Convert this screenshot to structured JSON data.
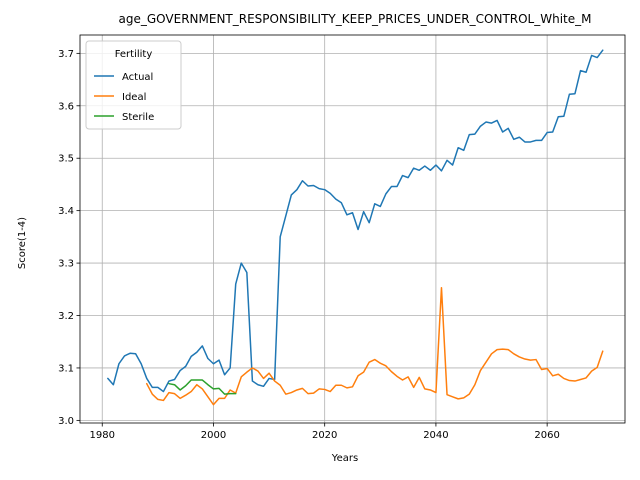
{
  "chart_data": {
    "type": "line",
    "title": "age_GOVERNMENT_RESPONSIBILITY_KEEP_PRICES_UNDER_CONTROL_White_M",
    "xlabel": "Years",
    "ylabel": "Score(1-4)",
    "xlim": [
      1976,
      2074
    ],
    "ylim": [
      2.995,
      3.735
    ],
    "xticks": [
      1980,
      2000,
      2020,
      2040,
      2060
    ],
    "yticks": [
      3.0,
      3.1,
      3.2,
      3.3,
      3.4,
      3.5,
      3.6,
      3.7
    ],
    "ytick_labels": [
      "3.0",
      "3.1",
      "3.2",
      "3.3",
      "3.4",
      "3.5",
      "3.6",
      "3.7"
    ],
    "grid": true,
    "legend": {
      "title": "Fertility",
      "placement": "upper-left",
      "entries": [
        "Actual",
        "Ideal",
        "Sterile"
      ]
    },
    "series": [
      {
        "name": "Actual",
        "color": "#1f77b4",
        "points": [
          [
            1981,
            3.08
          ],
          [
            1982,
            3.068
          ],
          [
            1983,
            3.108
          ],
          [
            1984,
            3.123
          ],
          [
            1985,
            3.128
          ],
          [
            1986,
            3.127
          ],
          [
            1987,
            3.108
          ],
          [
            1988,
            3.08
          ],
          [
            1989,
            3.063
          ],
          [
            1990,
            3.063
          ],
          [
            1991,
            3.055
          ],
          [
            1992,
            3.075
          ],
          [
            1993,
            3.078
          ],
          [
            1994,
            3.095
          ],
          [
            1995,
            3.103
          ],
          [
            1996,
            3.122
          ],
          [
            1997,
            3.13
          ],
          [
            1998,
            3.142
          ],
          [
            1999,
            3.118
          ],
          [
            2000,
            3.108
          ],
          [
            2001,
            3.115
          ],
          [
            2002,
            3.087
          ],
          [
            2003,
            3.1
          ],
          [
            2004,
            3.26
          ],
          [
            2005,
            3.3
          ],
          [
            2006,
            3.282
          ],
          [
            2007,
            3.075
          ],
          [
            2008,
            3.068
          ],
          [
            2009,
            3.065
          ],
          [
            2010,
            3.08
          ],
          [
            2011,
            3.078
          ],
          [
            2012,
            3.35
          ],
          [
            2013,
            3.39
          ],
          [
            2014,
            3.43
          ],
          [
            2015,
            3.44
          ],
          [
            2016,
            3.457
          ],
          [
            2017,
            3.447
          ],
          [
            2018,
            3.448
          ],
          [
            2019,
            3.442
          ],
          [
            2020,
            3.44
          ],
          [
            2021,
            3.433
          ],
          [
            2022,
            3.422
          ],
          [
            2023,
            3.415
          ],
          [
            2024,
            3.392
          ],
          [
            2025,
            3.396
          ],
          [
            2026,
            3.364
          ],
          [
            2027,
            3.398
          ],
          [
            2028,
            3.377
          ],
          [
            2029,
            3.413
          ],
          [
            2030,
            3.408
          ],
          [
            2031,
            3.432
          ],
          [
            2032,
            3.446
          ],
          [
            2033,
            3.446
          ],
          [
            2034,
            3.467
          ],
          [
            2035,
            3.463
          ],
          [
            2036,
            3.481
          ],
          [
            2037,
            3.477
          ],
          [
            2038,
            3.485
          ],
          [
            2039,
            3.477
          ],
          [
            2040,
            3.487
          ],
          [
            2041,
            3.476
          ],
          [
            2042,
            3.496
          ],
          [
            2043,
            3.487
          ],
          [
            2044,
            3.52
          ],
          [
            2045,
            3.515
          ],
          [
            2046,
            3.545
          ],
          [
            2047,
            3.546
          ],
          [
            2048,
            3.561
          ],
          [
            2049,
            3.569
          ],
          [
            2050,
            3.567
          ],
          [
            2051,
            3.572
          ],
          [
            2052,
            3.55
          ],
          [
            2053,
            3.557
          ],
          [
            2054,
            3.536
          ],
          [
            2055,
            3.54
          ],
          [
            2056,
            3.531
          ],
          [
            2057,
            3.531
          ],
          [
            2058,
            3.534
          ],
          [
            2059,
            3.534
          ],
          [
            2060,
            3.549
          ],
          [
            2061,
            3.55
          ],
          [
            2062,
            3.579
          ],
          [
            2063,
            3.58
          ],
          [
            2064,
            3.622
          ],
          [
            2065,
            3.623
          ],
          [
            2066,
            3.667
          ],
          [
            2067,
            3.664
          ],
          [
            2068,
            3.696
          ],
          [
            2069,
            3.692
          ],
          [
            2070,
            3.706
          ]
        ]
      },
      {
        "name": "Ideal",
        "color": "#ff7f0e",
        "points": [
          [
            1988,
            3.07
          ],
          [
            1989,
            3.05
          ],
          [
            1990,
            3.04
          ],
          [
            1991,
            3.038
          ],
          [
            1992,
            3.053
          ],
          [
            1993,
            3.051
          ],
          [
            1994,
            3.042
          ],
          [
            1995,
            3.048
          ],
          [
            1996,
            3.055
          ],
          [
            1997,
            3.068
          ],
          [
            1998,
            3.06
          ],
          [
            1999,
            3.045
          ],
          [
            2000,
            3.03
          ],
          [
            2001,
            3.042
          ],
          [
            2002,
            3.042
          ],
          [
            2003,
            3.058
          ],
          [
            2004,
            3.052
          ],
          [
            2005,
            3.083
          ],
          [
            2006,
            3.092
          ],
          [
            2007,
            3.1
          ],
          [
            2008,
            3.094
          ],
          [
            2009,
            3.08
          ],
          [
            2010,
            3.09
          ],
          [
            2011,
            3.075
          ],
          [
            2012,
            3.067
          ],
          [
            2013,
            3.05
          ],
          [
            2014,
            3.053
          ],
          [
            2015,
            3.058
          ],
          [
            2016,
            3.061
          ],
          [
            2017,
            3.051
          ],
          [
            2018,
            3.052
          ],
          [
            2019,
            3.06
          ],
          [
            2020,
            3.059
          ],
          [
            2021,
            3.055
          ],
          [
            2022,
            3.067
          ],
          [
            2023,
            3.067
          ],
          [
            2024,
            3.062
          ],
          [
            2025,
            3.064
          ],
          [
            2026,
            3.085
          ],
          [
            2027,
            3.092
          ],
          [
            2028,
            3.111
          ],
          [
            2029,
            3.116
          ],
          [
            2030,
            3.109
          ],
          [
            2031,
            3.104
          ],
          [
            2032,
            3.093
          ],
          [
            2033,
            3.084
          ],
          [
            2034,
            3.077
          ],
          [
            2035,
            3.083
          ],
          [
            2036,
            3.063
          ],
          [
            2037,
            3.082
          ],
          [
            2038,
            3.06
          ],
          [
            2039,
            3.058
          ],
          [
            2040,
            3.053
          ],
          [
            2041,
            3.253
          ],
          [
            2042,
            3.049
          ],
          [
            2043,
            3.045
          ],
          [
            2044,
            3.041
          ],
          [
            2045,
            3.043
          ],
          [
            2046,
            3.05
          ],
          [
            2047,
            3.068
          ],
          [
            2048,
            3.095
          ],
          [
            2049,
            3.111
          ],
          [
            2050,
            3.127
          ],
          [
            2051,
            3.135
          ],
          [
            2052,
            3.136
          ],
          [
            2053,
            3.135
          ],
          [
            2054,
            3.127
          ],
          [
            2055,
            3.121
          ],
          [
            2056,
            3.117
          ],
          [
            2057,
            3.115
          ],
          [
            2058,
            3.116
          ],
          [
            2059,
            3.097
          ],
          [
            2060,
            3.099
          ],
          [
            2061,
            3.085
          ],
          [
            2062,
            3.088
          ],
          [
            2063,
            3.08
          ],
          [
            2064,
            3.076
          ],
          [
            2065,
            3.075
          ],
          [
            2066,
            3.078
          ],
          [
            2067,
            3.081
          ],
          [
            2068,
            3.094
          ],
          [
            2069,
            3.101
          ],
          [
            2070,
            3.132
          ]
        ]
      },
      {
        "name": "Sterile",
        "color": "#2ca02c",
        "points": [
          [
            1992,
            3.07
          ],
          [
            1993,
            3.068
          ],
          [
            1994,
            3.058
          ],
          [
            1995,
            3.066
          ],
          [
            1996,
            3.077
          ],
          [
            1997,
            3.077
          ],
          [
            1998,
            3.077
          ],
          [
            1999,
            3.068
          ],
          [
            2000,
            3.06
          ],
          [
            2001,
            3.061
          ],
          [
            2002,
            3.05
          ],
          [
            2003,
            3.051
          ],
          [
            2004,
            3.051
          ]
        ]
      }
    ]
  }
}
